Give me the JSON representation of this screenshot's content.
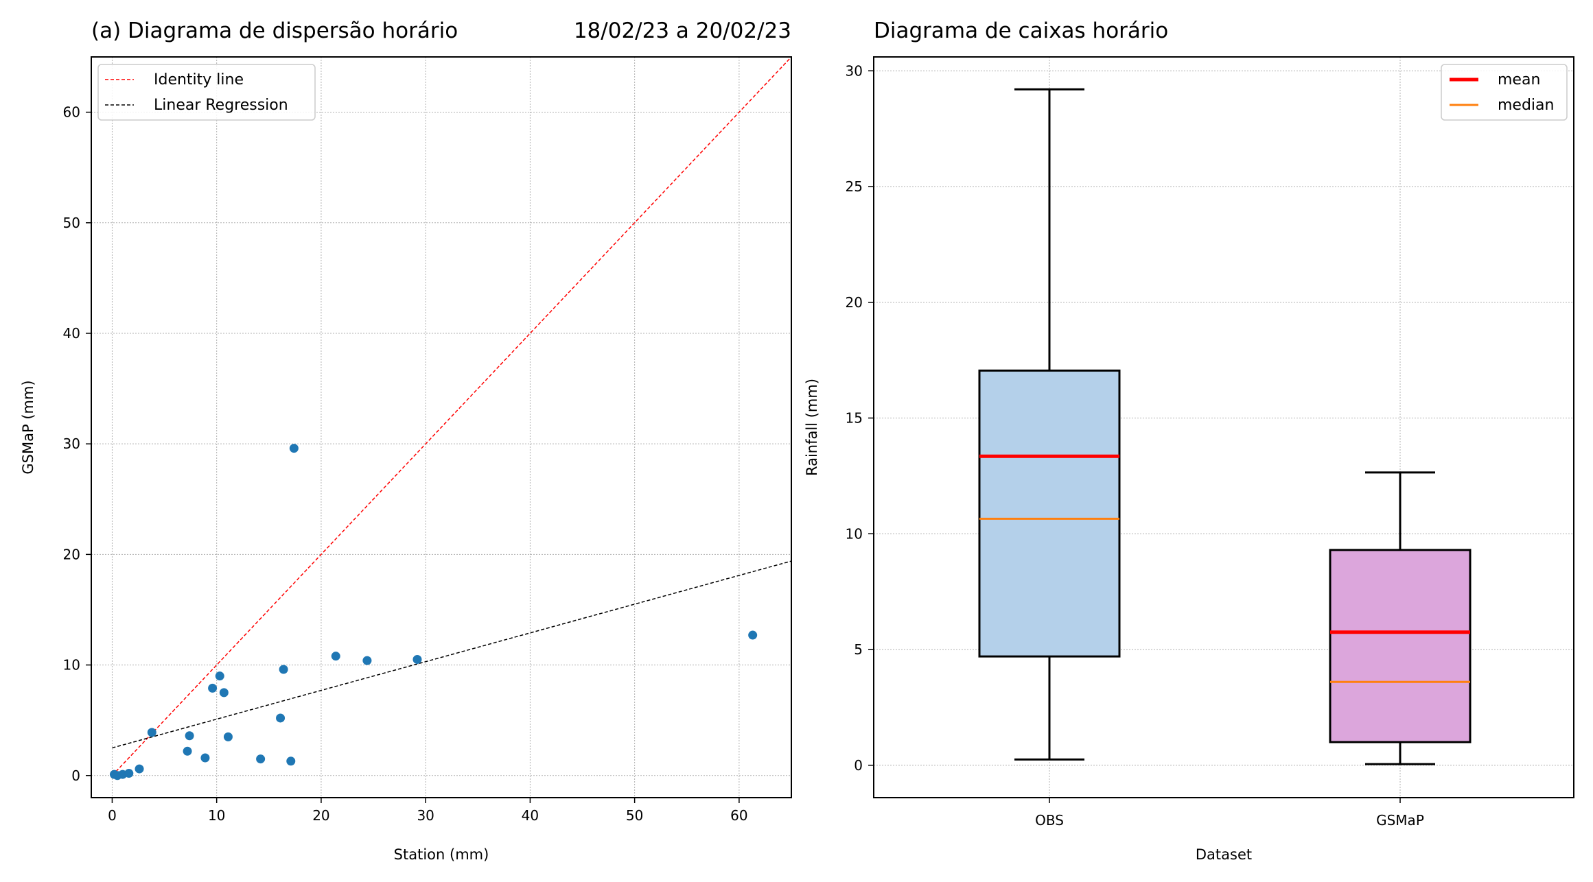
{
  "chart_data": [
    {
      "type": "scatter",
      "title": "(a) Diagrama de dispersão horário",
      "subtitle": "18/02/23 a 20/02/23",
      "xlabel": "Station (mm)",
      "ylabel": "GSMaP (mm)",
      "xlim": [
        -2,
        65
      ],
      "ylim": [
        -2,
        65
      ],
      "xticks": [
        0,
        10,
        20,
        30,
        40,
        50,
        60
      ],
      "yticks": [
        0,
        10,
        20,
        30,
        40,
        50,
        60
      ],
      "grid": true,
      "legend_position": "top-left",
      "points_color": "#1f77b4",
      "points": [
        {
          "x": 0.2,
          "y": 0.1
        },
        {
          "x": 0.5,
          "y": 0.0
        },
        {
          "x": 1.0,
          "y": 0.1
        },
        {
          "x": 1.6,
          "y": 0.2
        },
        {
          "x": 2.6,
          "y": 0.6
        },
        {
          "x": 3.8,
          "y": 3.9
        },
        {
          "x": 7.2,
          "y": 2.2
        },
        {
          "x": 7.4,
          "y": 3.6
        },
        {
          "x": 8.9,
          "y": 1.6
        },
        {
          "x": 9.6,
          "y": 7.9
        },
        {
          "x": 10.3,
          "y": 9.0
        },
        {
          "x": 10.7,
          "y": 7.5
        },
        {
          "x": 11.1,
          "y": 3.5
        },
        {
          "x": 14.2,
          "y": 1.5
        },
        {
          "x": 16.1,
          "y": 5.2
        },
        {
          "x": 16.4,
          "y": 9.6
        },
        {
          "x": 17.1,
          "y": 1.3
        },
        {
          "x": 17.4,
          "y": 29.6
        },
        {
          "x": 21.4,
          "y": 10.8
        },
        {
          "x": 24.4,
          "y": 10.4
        },
        {
          "x": 29.2,
          "y": 10.5
        },
        {
          "x": 61.3,
          "y": 12.7
        }
      ],
      "lines": [
        {
          "name": "Identity line",
          "color": "#ff0000",
          "x": [
            0,
            65
          ],
          "y": [
            0,
            65
          ]
        },
        {
          "name": "Linear Regression",
          "color": "#000000",
          "x": [
            0,
            65
          ],
          "y": [
            2.5,
            19.4
          ]
        }
      ]
    },
    {
      "type": "box",
      "title": "Diagrama de caixas horário",
      "xlabel": "Dataset",
      "ylabel": "Rainfall (mm)",
      "ylim": [
        -1.4,
        30.6
      ],
      "yticks": [
        0,
        5,
        10,
        15,
        20,
        25,
        30
      ],
      "grid": true,
      "legend_position": "top-right",
      "legend": [
        {
          "name": "mean",
          "color": "#ff0000"
        },
        {
          "name": "median",
          "color": "#ff7f0e"
        }
      ],
      "categories": [
        "OBS",
        "GSMaP"
      ],
      "boxes": [
        {
          "name": "OBS",
          "color": "#b4d0ea",
          "whisker_low": 0.25,
          "q1": 4.7,
          "median": 10.65,
          "mean": 13.35,
          "q3": 17.05,
          "whisker_high": 29.2
        },
        {
          "name": "GSMaP",
          "color": "#dca6dc",
          "whisker_low": 0.05,
          "q1": 1.0,
          "median": 3.6,
          "mean": 5.75,
          "q3": 9.3,
          "whisker_high": 12.65
        }
      ]
    }
  ]
}
